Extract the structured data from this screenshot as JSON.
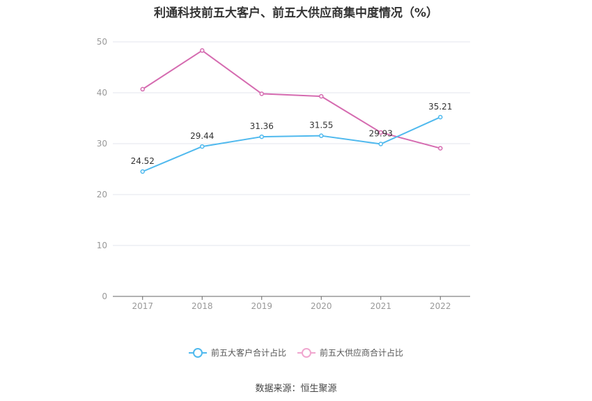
{
  "title": "利通科技前五大客户、前五大供应商集中度情况（%）",
  "source": "数据来源：恒生聚源",
  "chart_data": {
    "type": "line",
    "categories": [
      "2017",
      "2018",
      "2019",
      "2020",
      "2021",
      "2022"
    ],
    "ylim": [
      0,
      50
    ],
    "yticks": [
      0,
      10,
      20,
      30,
      40,
      50
    ],
    "grid": true,
    "legend_position": "bottom",
    "series": [
      {
        "name": "前五大客户合计占比",
        "color": "#4fb9ee",
        "values": [
          24.52,
          29.44,
          31.36,
          31.55,
          29.93,
          35.21
        ],
        "labels": [
          "24.52",
          "29.44",
          "31.36",
          "31.55",
          "29.93",
          "35.21"
        ]
      },
      {
        "name": "前五大供应商合计占比",
        "color": "#d56bb0",
        "values": [
          40.7,
          48.3,
          39.8,
          39.3,
          32.2,
          29.1
        ]
      }
    ]
  }
}
